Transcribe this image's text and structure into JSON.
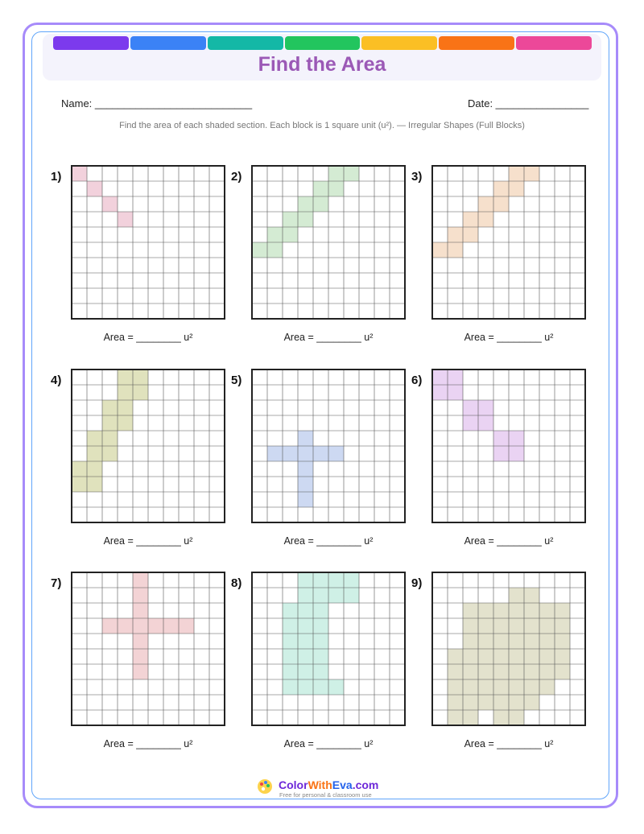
{
  "header": {
    "title": "Find the Area",
    "stripe_colors": [
      "#7c3aed",
      "#3b82f6",
      "#14b8a6",
      "#22c55e",
      "#fbbf24",
      "#f97316",
      "#ec4899"
    ]
  },
  "fields": {
    "name": "Name: ___________________________",
    "date": "Date: ________________"
  },
  "instructions": "Find the area of each shaded section. Each block is 1 square unit (u²). — Irregular Shapes (Full Blocks)",
  "area_prompt": "Area = ________ u²",
  "problems": [
    {
      "label": "1)",
      "color": "#f2d1dc",
      "cells": [
        [
          0,
          0
        ],
        [
          1,
          1
        ],
        [
          2,
          2
        ],
        [
          3,
          3
        ]
      ]
    },
    {
      "label": "2)",
      "color": "#d4ebd3",
      "cells": [
        [
          0,
          5
        ],
        [
          1,
          5
        ],
        [
          1,
          4
        ],
        [
          2,
          4
        ],
        [
          2,
          3
        ],
        [
          3,
          3
        ],
        [
          3,
          2
        ],
        [
          4,
          2
        ],
        [
          4,
          1
        ],
        [
          5,
          1
        ],
        [
          5,
          0
        ],
        [
          6,
          0
        ]
      ]
    },
    {
      "label": "3)",
      "color": "#f6e0cc",
      "cells": [
        [
          0,
          5
        ],
        [
          1,
          5
        ],
        [
          1,
          4
        ],
        [
          2,
          4
        ],
        [
          2,
          3
        ],
        [
          3,
          3
        ],
        [
          3,
          2
        ],
        [
          4,
          2
        ],
        [
          4,
          1
        ],
        [
          5,
          1
        ],
        [
          5,
          0
        ],
        [
          6,
          0
        ]
      ]
    },
    {
      "label": "4)",
      "color": "#e0e2bd",
      "cells": [
        [
          0,
          6
        ],
        [
          1,
          6
        ],
        [
          0,
          7
        ],
        [
          1,
          7
        ],
        [
          1,
          4
        ],
        [
          2,
          4
        ],
        [
          1,
          5
        ],
        [
          2,
          5
        ],
        [
          2,
          2
        ],
        [
          3,
          2
        ],
        [
          2,
          3
        ],
        [
          3,
          3
        ],
        [
          3,
          0
        ],
        [
          4,
          0
        ],
        [
          3,
          1
        ],
        [
          4,
          1
        ]
      ]
    },
    {
      "label": "5)",
      "color": "#cdd9f2",
      "cells": [
        [
          1,
          5
        ],
        [
          2,
          5
        ],
        [
          3,
          5
        ],
        [
          4,
          5
        ],
        [
          5,
          5
        ],
        [
          3,
          4
        ],
        [
          3,
          6
        ],
        [
          3,
          7
        ],
        [
          3,
          8
        ]
      ]
    },
    {
      "label": "6)",
      "color": "#ead3f3",
      "cells": [
        [
          0,
          0
        ],
        [
          1,
          0
        ],
        [
          0,
          1
        ],
        [
          1,
          1
        ],
        [
          2,
          2
        ],
        [
          3,
          2
        ],
        [
          2,
          3
        ],
        [
          3,
          3
        ],
        [
          4,
          4
        ],
        [
          5,
          4
        ],
        [
          4,
          5
        ],
        [
          5,
          5
        ]
      ]
    },
    {
      "label": "7)",
      "color": "#f3d3d5",
      "cells": [
        [
          2,
          3
        ],
        [
          3,
          3
        ],
        [
          4,
          3
        ],
        [
          4,
          0
        ],
        [
          4,
          1
        ],
        [
          4,
          2
        ],
        [
          4,
          4
        ],
        [
          4,
          5
        ],
        [
          4,
          6
        ],
        [
          5,
          3
        ],
        [
          6,
          3
        ],
        [
          7,
          3
        ]
      ]
    },
    {
      "label": "8)",
      "color": "#cff0e6",
      "cells": [
        [
          3,
          0
        ],
        [
          4,
          0
        ],
        [
          5,
          0
        ],
        [
          6,
          0
        ],
        [
          3,
          1
        ],
        [
          4,
          1
        ],
        [
          5,
          1
        ],
        [
          6,
          1
        ],
        [
          2,
          2
        ],
        [
          3,
          2
        ],
        [
          4,
          2
        ],
        [
          2,
          3
        ],
        [
          3,
          3
        ],
        [
          4,
          3
        ],
        [
          2,
          4
        ],
        [
          3,
          4
        ],
        [
          4,
          4
        ],
        [
          2,
          5
        ],
        [
          3,
          5
        ],
        [
          4,
          5
        ],
        [
          2,
          6
        ],
        [
          3,
          6
        ],
        [
          4,
          6
        ],
        [
          2,
          7
        ],
        [
          3,
          7
        ],
        [
          4,
          7
        ],
        [
          5,
          7
        ]
      ]
    },
    {
      "label": "9)",
      "color": "#e3e2cd",
      "cells": [
        [
          1,
          5
        ],
        [
          1,
          6
        ],
        [
          1,
          7
        ],
        [
          1,
          8
        ],
        [
          1,
          9
        ],
        [
          2,
          2
        ],
        [
          2,
          3
        ],
        [
          2,
          4
        ],
        [
          2,
          5
        ],
        [
          2,
          6
        ],
        [
          2,
          7
        ],
        [
          2,
          8
        ],
        [
          2,
          9
        ],
        [
          3,
          2
        ],
        [
          3,
          3
        ],
        [
          3,
          4
        ],
        [
          3,
          5
        ],
        [
          3,
          6
        ],
        [
          3,
          7
        ],
        [
          3,
          8
        ],
        [
          4,
          2
        ],
        [
          4,
          3
        ],
        [
          4,
          4
        ],
        [
          4,
          5
        ],
        [
          4,
          6
        ],
        [
          4,
          7
        ],
        [
          4,
          8
        ],
        [
          4,
          9
        ],
        [
          5,
          1
        ],
        [
          5,
          2
        ],
        [
          5,
          3
        ],
        [
          5,
          4
        ],
        [
          5,
          5
        ],
        [
          5,
          6
        ],
        [
          5,
          7
        ],
        [
          5,
          8
        ],
        [
          5,
          9
        ],
        [
          6,
          1
        ],
        [
          6,
          2
        ],
        [
          6,
          3
        ],
        [
          6,
          4
        ],
        [
          6,
          5
        ],
        [
          6,
          6
        ],
        [
          6,
          7
        ],
        [
          6,
          8
        ],
        [
          7,
          2
        ],
        [
          7,
          3
        ],
        [
          7,
          4
        ],
        [
          7,
          5
        ],
        [
          7,
          6
        ],
        [
          7,
          7
        ],
        [
          8,
          2
        ],
        [
          8,
          3
        ],
        [
          8,
          4
        ],
        [
          8,
          5
        ],
        [
          8,
          6
        ]
      ]
    }
  ],
  "footer": {
    "brand_color": "Color",
    "brand_with": "With",
    "brand_eva": "Eva",
    "brand_com": ".com",
    "tagline": "Free for personal & classroom use"
  }
}
